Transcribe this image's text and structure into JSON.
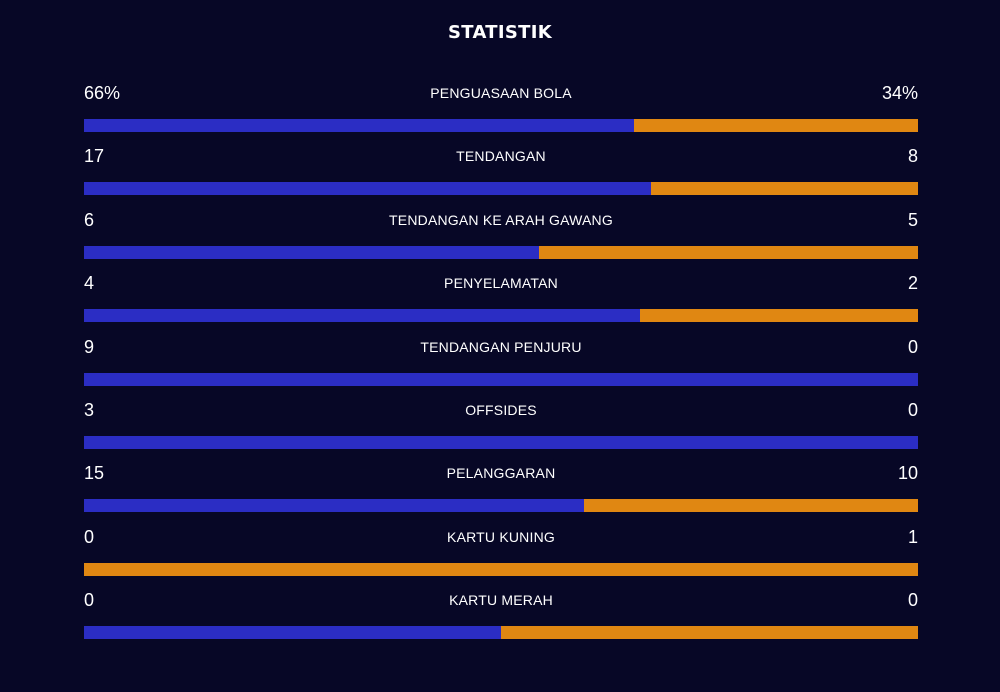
{
  "title": "STATISTIK",
  "colors": {
    "background": "#070726",
    "home": "#2b2dc4",
    "away": "#e08712"
  },
  "stats": [
    {
      "label": "PENGUASAAN BOLA",
      "home": "66%",
      "away": "34%",
      "home_value": 66,
      "away_value": 34
    },
    {
      "label": "TENDANGAN",
      "home": "17",
      "away": "8",
      "home_value": 17,
      "away_value": 8
    },
    {
      "label": "TENDANGAN KE ARAH GAWANG",
      "home": "6",
      "away": "5",
      "home_value": 6,
      "away_value": 5
    },
    {
      "label": "PENYELAMATAN",
      "home": "4",
      "away": "2",
      "home_value": 4,
      "away_value": 2
    },
    {
      "label": "TENDANGAN PENJURU",
      "home": "9",
      "away": "0",
      "home_value": 9,
      "away_value": 0
    },
    {
      "label": "OFFSIDES",
      "home": "3",
      "away": "0",
      "home_value": 3,
      "away_value": 0
    },
    {
      "label": "PELANGGARAN",
      "home": "15",
      "away": "10",
      "home_value": 15,
      "away_value": 10
    },
    {
      "label": "KARTU KUNING",
      "home": "0",
      "away": "1",
      "home_value": 0,
      "away_value": 1
    },
    {
      "label": "KARTU MERAH",
      "home": "0",
      "away": "0",
      "home_value": 0,
      "away_value": 0
    }
  ]
}
